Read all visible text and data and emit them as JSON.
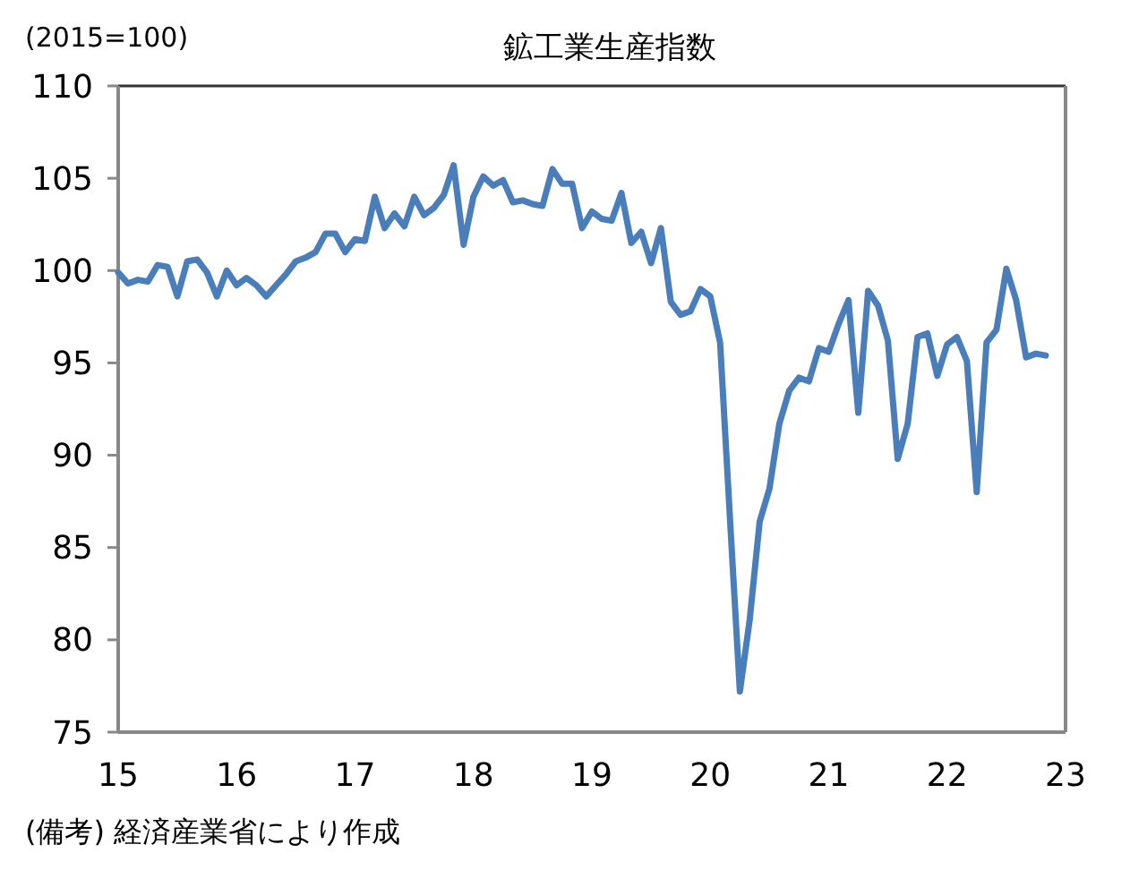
{
  "chart_data": {
    "type": "line",
    "title": "鉱工業生産指数",
    "ylabel": "(2015=100)",
    "annotations": [
      "(備考) 経済産業省により作成"
    ],
    "xlim": [
      15,
      23
    ],
    "xticks": [
      15,
      16,
      17,
      18,
      19,
      20,
      21,
      22,
      23
    ],
    "ylim": [
      75,
      110
    ],
    "yticks": [
      75,
      80,
      85,
      90,
      95,
      100,
      105,
      110
    ],
    "grid": false,
    "marker": "none",
    "line_style": "solid",
    "series": [
      {
        "color": "#4a7ebb",
        "x": [
          15,
          15.083,
          15.167,
          15.25,
          15.333,
          15.417,
          15.5,
          15.583,
          15.667,
          15.75,
          15.833,
          15.917,
          16,
          16.083,
          16.167,
          16.25,
          16.333,
          16.417,
          16.5,
          16.583,
          16.667,
          16.75,
          16.833,
          16.917,
          17,
          17.083,
          17.167,
          17.25,
          17.333,
          17.417,
          17.5,
          17.583,
          17.667,
          17.75,
          17.833,
          17.917,
          18,
          18.083,
          18.167,
          18.25,
          18.333,
          18.417,
          18.5,
          18.583,
          18.667,
          18.75,
          18.833,
          18.917,
          19,
          19.083,
          19.167,
          19.25,
          19.333,
          19.417,
          19.5,
          19.583,
          19.667,
          19.75,
          19.833,
          19.917,
          20,
          20.083,
          20.167,
          20.25,
          20.333,
          20.417,
          20.5,
          20.583,
          20.667,
          20.75,
          20.833,
          20.917,
          21,
          21.083,
          21.167,
          21.25,
          21.333,
          21.417,
          21.5,
          21.583,
          21.667,
          21.75,
          21.833,
          21.917,
          22,
          22.083,
          22.167,
          22.25,
          22.333,
          22.417,
          22.5,
          22.583,
          22.667,
          22.75,
          22.833
        ],
        "values": [
          99.9,
          99.3,
          99.5,
          99.4,
          100.3,
          100.2,
          98.6,
          100.5,
          100.6,
          99.9,
          98.6,
          100.0,
          99.2,
          99.6,
          99.2,
          98.6,
          99.2,
          99.8,
          100.5,
          100.7,
          101.0,
          102.0,
          102.0,
          101.0,
          101.7,
          101.6,
          104.0,
          102.3,
          103.1,
          102.4,
          104.0,
          103.0,
          103.4,
          104.1,
          105.7,
          101.4,
          104.0,
          105.1,
          104.6,
          104.9,
          103.7,
          103.8,
          103.6,
          103.5,
          105.5,
          104.7,
          104.7,
          102.3,
          103.2,
          102.8,
          102.7,
          104.2,
          101.5,
          102.1,
          100.4,
          102.3,
          98.3,
          97.6,
          97.8,
          99.0,
          98.6,
          96.1,
          86.5,
          77.2,
          81.1,
          86.4,
          88.2,
          91.7,
          93.5,
          94.2,
          94.0,
          95.8,
          95.6,
          97.1,
          98.4,
          92.3,
          98.9,
          98.1,
          96.2,
          89.8,
          91.7,
          96.4,
          96.6,
          94.3,
          96.0,
          96.4,
          95.1,
          88.0,
          96.1,
          96.8,
          100.1,
          98.4,
          95.3,
          95.5,
          95.4
        ]
      }
    ]
  }
}
